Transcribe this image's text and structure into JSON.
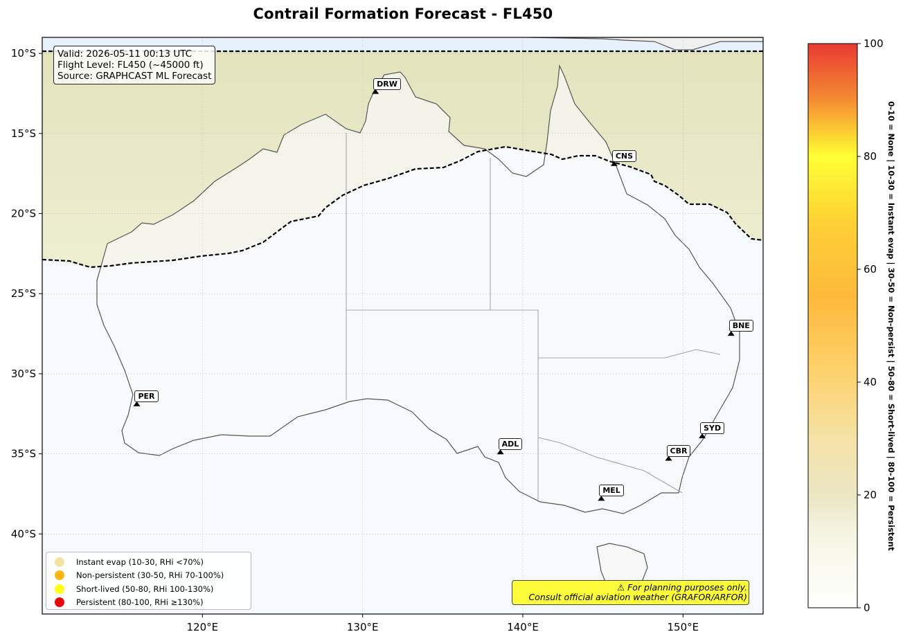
{
  "title": "Contrail Formation Forecast - FL450",
  "info": {
    "valid": "Valid: 2026-05-11 00:13 UTC",
    "flight_level": "Flight Level: FL450 (~45000 ft)",
    "source": "Source: GRAPHCAST ML Forecast"
  },
  "warning": {
    "line1": "⚠ For planning purposes only.",
    "line2": "Consult official aviation weather (GRAFOR/ARFOR)"
  },
  "legend": [
    {
      "label": "Instant evap (10-30, RHi <70%)",
      "color": "#f2e3a4"
    },
    {
      "label": "Non-persistent (30-50, RHi 70-100%)",
      "color": "#fdb515"
    },
    {
      "label": "Short-lived (50-80, RHi 100-130%)",
      "color": "#ffff1a"
    },
    {
      "label": "Persistent (80-100, RHi ≥130%)",
      "color": "#e80808"
    }
  ],
  "lat_ticks": [
    "10°S",
    "15°S",
    "20°S",
    "25°S",
    "30°S",
    "35°S",
    "40°S"
  ],
  "lon_ticks": [
    "120°E",
    "130°E",
    "140°E",
    "150°E"
  ],
  "extent": {
    "lon": [
      110,
      155
    ],
    "lat": [
      -45,
      -9
    ]
  },
  "cities": [
    {
      "code": "DRW",
      "lon": 130.8,
      "lat": -12.4
    },
    {
      "code": "CNS",
      "lon": 145.7,
      "lat": -16.9
    },
    {
      "code": "BNE",
      "lon": 153.0,
      "lat": -27.5
    },
    {
      "code": "PER",
      "lon": 115.9,
      "lat": -31.9
    },
    {
      "code": "ADL",
      "lon": 138.6,
      "lat": -34.9
    },
    {
      "code": "SYD",
      "lon": 151.2,
      "lat": -33.9
    },
    {
      "code": "CBR",
      "lon": 149.1,
      "lat": -35.3
    },
    {
      "code": "MEL",
      "lon": 144.9,
      "lat": -37.8
    }
  ],
  "colorbar": {
    "ticks": [
      "0",
      "20",
      "40",
      "60",
      "80",
      "100"
    ],
    "min": 0,
    "max": 100,
    "description": "0-10 = None  |  10-30 = Instant evap  |  30-50 = Non-persist  |  50-80 = Short-lived  |  80-100 = Persistent"
  },
  "colors": {
    "instant_evap": "#f2e3a4",
    "non_persistent": "#fdb515",
    "short_lived": "#ffff1a",
    "persistent": "#e80808",
    "ocean": "#f5f9fd",
    "land": "#f7f7f7"
  }
}
